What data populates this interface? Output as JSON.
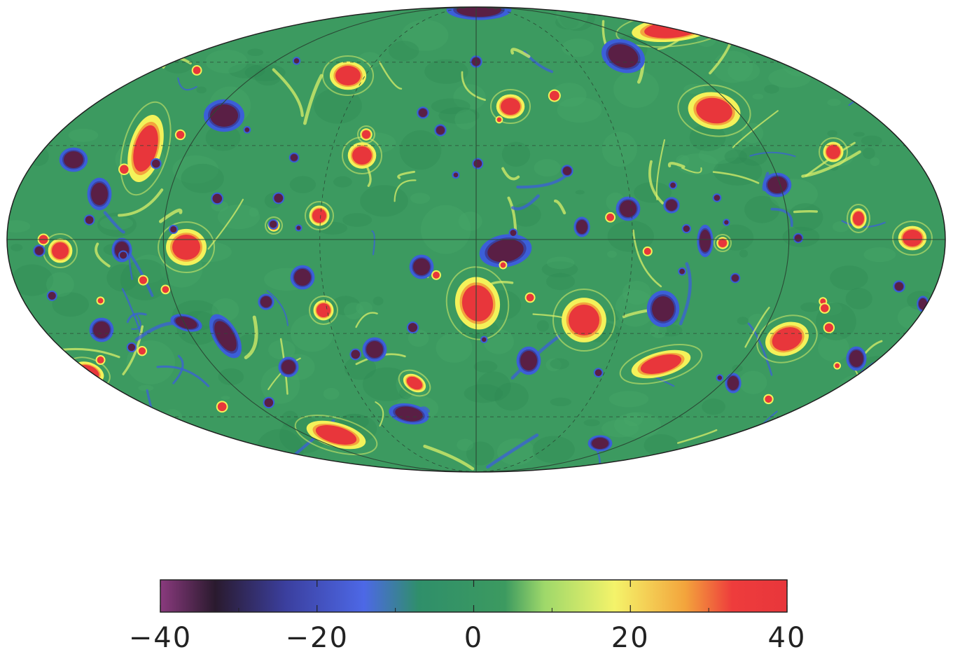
{
  "map": {
    "projection": "mollweide",
    "graticule": true,
    "colors": {
      "ocean": "#3c9a60",
      "ocean_dark": "#2f8a52",
      "outline": "#1f1f1f",
      "grid": "#2a4a35"
    },
    "vortex_palette": {
      "cyclone_core": "#e8363b",
      "cyclone_ring": "#f3f25a",
      "anticyclone_core": "#5a1f45",
      "anticyclone_ring": "#3b5fd8",
      "filament": "#d9ef6a"
    }
  },
  "colorbar": {
    "min": -40,
    "max": 40,
    "ticks": [
      -40,
      -20,
      0,
      20,
      40
    ],
    "tick_labels": [
      "−40",
      "−20",
      "0",
      "20",
      "40"
    ],
    "stops": [
      {
        "v": -40,
        "color": "#8a3a7e"
      },
      {
        "v": -33,
        "color": "#2a1a2e"
      },
      {
        "v": -24,
        "color": "#3b3f9e"
      },
      {
        "v": -14,
        "color": "#4d68e6"
      },
      {
        "v": -7,
        "color": "#2f8f6a"
      },
      {
        "v": 4,
        "color": "#3c9a60"
      },
      {
        "v": 9,
        "color": "#9ed86a"
      },
      {
        "v": 18,
        "color": "#f4f36a"
      },
      {
        "v": 27,
        "color": "#f3a43c"
      },
      {
        "v": 33,
        "color": "#ee3c3c"
      },
      {
        "v": 40,
        "color": "#e8363b"
      }
    ]
  }
}
